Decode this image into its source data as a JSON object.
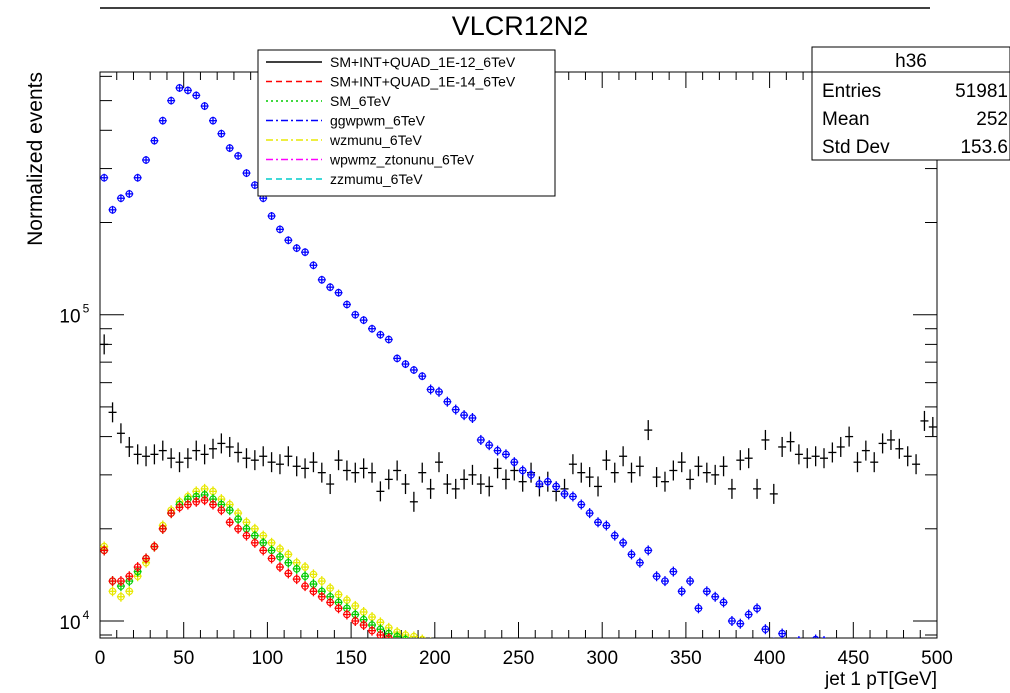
{
  "chart_data": {
    "type": "scatter",
    "title": "VLCR12N2",
    "xlabel": "jet 1 pT[GeV]",
    "ylabel": "Normalized events",
    "xlim": [
      0,
      500
    ],
    "ylim": [
      8800,
      620000
    ],
    "yscale": "log",
    "x_ticks": [
      "0",
      "50",
      "100",
      "150",
      "200",
      "250",
      "300",
      "350",
      "400",
      "450",
      "500"
    ],
    "y_ticks": [
      {
        "value": 10000,
        "label": "10",
        "exp": "4"
      },
      {
        "value": 100000,
        "label": "10",
        "exp": "5"
      }
    ],
    "legend": {
      "placement": "top-left",
      "entries": [
        {
          "label": "SM+INT+QUAD_1E-12_6TeV",
          "color": "#000000",
          "dash": "solid"
        },
        {
          "label": "SM+INT+QUAD_1E-14_6TeV",
          "color": "#ff0000",
          "dash": "dashed"
        },
        {
          "label": "SM_6TeV",
          "color": "#00cc00",
          "dash": "dotted"
        },
        {
          "label": "ggwpwm_6TeV",
          "color": "#0000ff",
          "dash": "dashdot"
        },
        {
          "label": "wzmunu_6TeV",
          "color": "#e8e800",
          "dash": "dashdot"
        },
        {
          "label": "wpwmz_ztonunu_6TeV",
          "color": "#ff00ff",
          "dash": "dashdot"
        },
        {
          "label": "zzmumu_6TeV",
          "color": "#00cccc",
          "dash": "dashed"
        }
      ]
    },
    "stats": {
      "name": "h36",
      "rows": [
        {
          "label": "Entries",
          "value": "51981"
        },
        {
          "label": "Mean",
          "value": "252"
        },
        {
          "label": "Std Dev",
          "value": "153.6"
        }
      ]
    },
    "grid": false,
    "series": [
      {
        "name": "SM+INT+QUAD_1E-12_6TeV",
        "color": "#000000",
        "x": [
          2.5,
          7.5,
          12.5,
          17.5,
          22.5,
          27.5,
          32.5,
          37.5,
          42.5,
          47.5,
          52.5,
          57.5,
          62.5,
          67.5,
          72.5,
          77.5,
          82.5,
          87.5,
          92.5,
          97.5,
          102.5,
          107.5,
          112.5,
          117.5,
          122.5,
          127.5,
          132.5,
          137.5,
          142.5,
          147.5,
          152.5,
          157.5,
          162.5,
          167.5,
          172.5,
          177.5,
          182.5,
          187.5,
          192.5,
          197.5,
          202.5,
          207.5,
          212.5,
          217.5,
          222.5,
          227.5,
          232.5,
          237.5,
          242.5,
          247.5,
          252.5,
          257.5,
          262.5,
          267.5,
          272.5,
          277.5,
          282.5,
          287.5,
          292.5,
          297.5,
          302.5,
          307.5,
          312.5,
          317.5,
          322.5,
          327.5,
          332.5,
          337.5,
          342.5,
          347.5,
          352.5,
          357.5,
          362.5,
          367.5,
          372.5,
          377.5,
          382.5,
          387.5,
          392.5,
          397.5,
          402.5,
          407.5,
          412.5,
          417.5,
          422.5,
          427.5,
          432.5,
          437.5,
          442.5,
          447.5,
          452.5,
          457.5,
          462.5,
          467.5,
          472.5,
          477.5,
          482.5,
          487.5,
          492.5,
          497.5
        ],
        "y": [
          80000,
          48000,
          41000,
          37000,
          35000,
          34500,
          35000,
          36000,
          34000,
          33000,
          34000,
          36000,
          35000,
          36500,
          38000,
          37000,
          35500,
          34000,
          33500,
          34500,
          33000,
          32500,
          34500,
          32000,
          31500,
          33000,
          30500,
          28000,
          33500,
          31000,
          30500,
          31500,
          30500,
          26500,
          29000,
          31000,
          28000,
          24500,
          30500,
          27000,
          33000,
          28000,
          27000,
          29000,
          30000,
          28000,
          27500,
          31500,
          29000,
          31000,
          28500,
          30500,
          27500,
          28500,
          26500,
          27000,
          32500,
          30500,
          29500,
          27500,
          33500,
          30500,
          34500,
          30500,
          32000,
          42000,
          29500,
          28500,
          31000,
          33000,
          29000,
          32000,
          30500,
          30000,
          32000,
          27000,
          33500,
          34000,
          27000,
          39000,
          26000,
          37000,
          38500,
          35000,
          34000,
          34500,
          34000,
          35500,
          37000,
          40000,
          33000,
          36000,
          33000,
          38000,
          39000,
          36500,
          34500,
          32500,
          45000,
          43000
        ]
      },
      {
        "name": "ggwpwm_6TeV",
        "color": "#0000ff",
        "x": [
          2.5,
          7.5,
          12.5,
          17.5,
          22.5,
          27.5,
          32.5,
          37.5,
          42.5,
          47.5,
          52.5,
          57.5,
          62.5,
          67.5,
          72.5,
          77.5,
          82.5,
          87.5,
          92.5,
          97.5,
          102.5,
          107.5,
          112.5,
          117.5,
          122.5,
          127.5,
          132.5,
          137.5,
          142.5,
          147.5,
          152.5,
          157.5,
          162.5,
          167.5,
          172.5,
          177.5,
          182.5,
          187.5,
          192.5,
          197.5,
          202.5,
          207.5,
          212.5,
          217.5,
          222.5,
          227.5,
          232.5,
          237.5,
          242.5,
          247.5,
          252.5,
          257.5,
          262.5,
          267.5,
          272.5,
          277.5,
          282.5,
          287.5,
          292.5,
          297.5,
          302.5,
          307.5,
          312.5,
          317.5,
          322.5,
          327.5,
          332.5,
          337.5,
          342.5,
          347.5,
          352.5,
          357.5,
          362.5,
          367.5,
          372.5,
          377.5,
          382.5,
          387.5,
          392.5,
          397.5,
          402.5,
          407.5,
          412.5,
          417.5,
          422.5,
          427.5,
          432.5
        ],
        "y": [
          280000,
          220000,
          240000,
          248000,
          280000,
          320000,
          370000,
          430000,
          500000,
          550000,
          540000,
          520000,
          480000,
          430000,
          390000,
          350000,
          330000,
          290000,
          265000,
          240000,
          210000,
          190000,
          175000,
          165000,
          160000,
          145000,
          130000,
          123000,
          118000,
          108000,
          100000,
          96000,
          90000,
          86000,
          83000,
          72000,
          69000,
          66000,
          63000,
          57000,
          56000,
          52000,
          49000,
          47000,
          46000,
          39000,
          37500,
          36000,
          35000,
          33000,
          31000,
          30000,
          28000,
          28500,
          27500,
          26000,
          25500,
          24000,
          22500,
          21000,
          20500,
          19000,
          18000,
          16500,
          15500,
          17000,
          14000,
          13500,
          14500,
          12500,
          13500,
          11000,
          12500,
          12000,
          11500,
          10000,
          9800,
          10500,
          11000,
          9400,
          8500,
          9100,
          8300,
          8600,
          8200,
          8700,
          8600
        ]
      },
      {
        "name": "wzmunu_6TeV",
        "color": "#e8e800",
        "x": [
          2.5,
          7.5,
          12.5,
          17.5,
          22.5,
          27.5,
          32.5,
          37.5,
          42.5,
          47.5,
          52.5,
          57.5,
          62.5,
          67.5,
          72.5,
          77.5,
          82.5,
          87.5,
          92.5,
          97.5,
          102.5,
          107.5,
          112.5,
          117.5,
          122.5,
          127.5,
          132.5,
          137.5,
          142.5,
          147.5,
          152.5,
          157.5,
          162.5,
          167.5,
          172.5,
          177.5,
          182.5,
          187.5,
          192.5,
          197.5,
          202.5,
          207.5,
          212.5,
          217.5,
          222.5
        ],
        "y": [
          17500,
          12500,
          12000,
          12500,
          14000,
          15500,
          17500,
          20500,
          23000,
          24500,
          25500,
          26500,
          27000,
          26500,
          25000,
          24000,
          22500,
          21000,
          20000,
          19000,
          18000,
          17200,
          16500,
          15500,
          15000,
          14200,
          13500,
          12800,
          12200,
          11700,
          11200,
          10700,
          10300,
          9900,
          9500,
          9200,
          9000,
          8900,
          8700,
          8500,
          8300,
          8100,
          8000,
          7900,
          7800
        ]
      },
      {
        "name": "SM_6TeV",
        "color": "#00cc00",
        "x": [
          2.5,
          7.5,
          12.5,
          17.5,
          22.5,
          27.5,
          32.5,
          37.5,
          42.5,
          47.5,
          52.5,
          57.5,
          62.5,
          67.5,
          72.5,
          77.5,
          82.5,
          87.5,
          92.5,
          97.5,
          102.5,
          107.5,
          112.5,
          117.5,
          122.5,
          127.5,
          132.5,
          137.5,
          142.5,
          147.5,
          152.5,
          157.5,
          162.5,
          167.5,
          172.5,
          177.5,
          182.5,
          187.5,
          192.5,
          197.5,
          202.5,
          207.5,
          212.5
        ],
        "y": [
          17000,
          13500,
          13000,
          13500,
          14500,
          16000,
          17500,
          20000,
          22500,
          24000,
          25000,
          25500,
          25800,
          25000,
          24000,
          23000,
          21500,
          20000,
          19000,
          18000,
          17000,
          16200,
          15500,
          14800,
          14000,
          13200,
          12500,
          12000,
          11500,
          11000,
          10500,
          10100,
          9700,
          9400,
          9100,
          8900,
          8700,
          8500,
          8300,
          8100,
          7900,
          7800,
          7700
        ]
      },
      {
        "name": "SM+INT+QUAD_1E-14_6TeV",
        "color": "#ff0000",
        "x": [
          2.5,
          7.5,
          12.5,
          17.5,
          22.5,
          27.5,
          32.5,
          37.5,
          42.5,
          47.5,
          52.5,
          57.5,
          62.5,
          67.5,
          72.5,
          77.5,
          82.5,
          87.5,
          92.5,
          97.5,
          102.5,
          107.5,
          112.5,
          117.5,
          122.5,
          127.5,
          132.5,
          137.5,
          142.5,
          147.5,
          152.5,
          157.5,
          162.5,
          167.5,
          172.5,
          177.5,
          182.5,
          187.5,
          192.5,
          197.5,
          202.5,
          207.5
        ],
        "y": [
          17000,
          13500,
          13500,
          14000,
          15000,
          16000,
          17500,
          20000,
          22500,
          23500,
          24000,
          24500,
          24800,
          24000,
          23000,
          21000,
          20000,
          19000,
          18000,
          17000,
          16000,
          15000,
          14300,
          13700,
          13000,
          12500,
          12000,
          11500,
          11000,
          10500,
          10000,
          9700,
          9300,
          9000,
          8800,
          8500,
          8300,
          8100,
          8000,
          7900,
          7800,
          7700
        ]
      }
    ]
  }
}
